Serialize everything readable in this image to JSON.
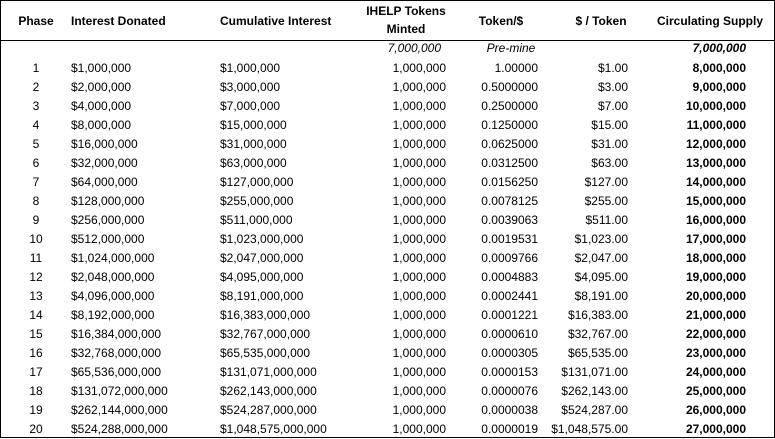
{
  "headers": {
    "phase": "Phase",
    "interest_donated": "Interest Donated",
    "cumulative_interest": "Cumulative Interest",
    "tokens_minted_line1": "IHELP Tokens",
    "tokens_minted_line2": "Minted",
    "token_per_dollar": "Token/$",
    "dollar_per_token": "$ / Token",
    "circulating_supply": "Circulating Supply"
  },
  "premine": {
    "tokens_minted": "7,000,000",
    "token_per_dollar": "Pre-mine",
    "circulating_supply": "7,000,000"
  },
  "rows": [
    {
      "phase": "1",
      "donated": "$1,000,000",
      "cumulative": "$1,000,000",
      "minted": "1,000,000",
      "token_per_dollar": "1.00000",
      "dollar_per_token": "$1.00",
      "supply": "8,000,000"
    },
    {
      "phase": "2",
      "donated": "$2,000,000",
      "cumulative": "$3,000,000",
      "minted": "1,000,000",
      "token_per_dollar": "0.5000000",
      "dollar_per_token": "$3.00",
      "supply": "9,000,000"
    },
    {
      "phase": "3",
      "donated": "$4,000,000",
      "cumulative": "$7,000,000",
      "minted": "1,000,000",
      "token_per_dollar": "0.2500000",
      "dollar_per_token": "$7.00",
      "supply": "10,000,000"
    },
    {
      "phase": "4",
      "donated": "$8,000,000",
      "cumulative": "$15,000,000",
      "minted": "1,000,000",
      "token_per_dollar": "0.1250000",
      "dollar_per_token": "$15.00",
      "supply": "11,000,000"
    },
    {
      "phase": "5",
      "donated": "$16,000,000",
      "cumulative": "$31,000,000",
      "minted": "1,000,000",
      "token_per_dollar": "0.0625000",
      "dollar_per_token": "$31.00",
      "supply": "12,000,000"
    },
    {
      "phase": "6",
      "donated": "$32,000,000",
      "cumulative": "$63,000,000",
      "minted": "1,000,000",
      "token_per_dollar": "0.0312500",
      "dollar_per_token": "$63.00",
      "supply": "13,000,000"
    },
    {
      "phase": "7",
      "donated": "$64,000,000",
      "cumulative": "$127,000,000",
      "minted": "1,000,000",
      "token_per_dollar": "0.0156250",
      "dollar_per_token": "$127.00",
      "supply": "14,000,000"
    },
    {
      "phase": "8",
      "donated": "$128,000,000",
      "cumulative": "$255,000,000",
      "minted": "1,000,000",
      "token_per_dollar": "0.0078125",
      "dollar_per_token": "$255.00",
      "supply": "15,000,000"
    },
    {
      "phase": "9",
      "donated": "$256,000,000",
      "cumulative": "$511,000,000",
      "minted": "1,000,000",
      "token_per_dollar": "0.0039063",
      "dollar_per_token": "$511.00",
      "supply": "16,000,000"
    },
    {
      "phase": "10",
      "donated": "$512,000,000",
      "cumulative": "$1,023,000,000",
      "minted": "1,000,000",
      "token_per_dollar": "0.0019531",
      "dollar_per_token": "$1,023.00",
      "supply": "17,000,000"
    },
    {
      "phase": "11",
      "donated": "$1,024,000,000",
      "cumulative": "$2,047,000,000",
      "minted": "1,000,000",
      "token_per_dollar": "0.0009766",
      "dollar_per_token": "$2,047.00",
      "supply": "18,000,000"
    },
    {
      "phase": "12",
      "donated": "$2,048,000,000",
      "cumulative": "$4,095,000,000",
      "minted": "1,000,000",
      "token_per_dollar": "0.0004883",
      "dollar_per_token": "$4,095.00",
      "supply": "19,000,000"
    },
    {
      "phase": "13",
      "donated": "$4,096,000,000",
      "cumulative": "$8,191,000,000",
      "minted": "1,000,000",
      "token_per_dollar": "0.0002441",
      "dollar_per_token": "$8,191.00",
      "supply": "20,000,000"
    },
    {
      "phase": "14",
      "donated": "$8,192,000,000",
      "cumulative": "$16,383,000,000",
      "minted": "1,000,000",
      "token_per_dollar": "0.0001221",
      "dollar_per_token": "$16,383.00",
      "supply": "21,000,000"
    },
    {
      "phase": "15",
      "donated": "$16,384,000,000",
      "cumulative": "$32,767,000,000",
      "minted": "1,000,000",
      "token_per_dollar": "0.0000610",
      "dollar_per_token": "$32,767.00",
      "supply": "22,000,000"
    },
    {
      "phase": "16",
      "donated": "$32,768,000,000",
      "cumulative": "$65,535,000,000",
      "minted": "1,000,000",
      "token_per_dollar": "0.0000305",
      "dollar_per_token": "$65,535.00",
      "supply": "23,000,000"
    },
    {
      "phase": "17",
      "donated": "$65,536,000,000",
      "cumulative": "$131,071,000,000",
      "minted": "1,000,000",
      "token_per_dollar": "0.0000153",
      "dollar_per_token": "$131,071.00",
      "supply": "24,000,000"
    },
    {
      "phase": "18",
      "donated": "$131,072,000,000",
      "cumulative": "$262,143,000,000",
      "minted": "1,000,000",
      "token_per_dollar": "0.0000076",
      "dollar_per_token": "$262,143.00",
      "supply": "25,000,000"
    },
    {
      "phase": "19",
      "donated": "$262,144,000,000",
      "cumulative": "$524,287,000,000",
      "minted": "1,000,000",
      "token_per_dollar": "0.0000038",
      "dollar_per_token": "$524,287.00",
      "supply": "26,000,000"
    },
    {
      "phase": "20",
      "donated": "$524,288,000,000",
      "cumulative": "$1,048,575,000,000",
      "minted": "1,000,000",
      "token_per_dollar": "0.0000019",
      "dollar_per_token": "$1,048,575.00",
      "supply": "27,000,000"
    }
  ]
}
